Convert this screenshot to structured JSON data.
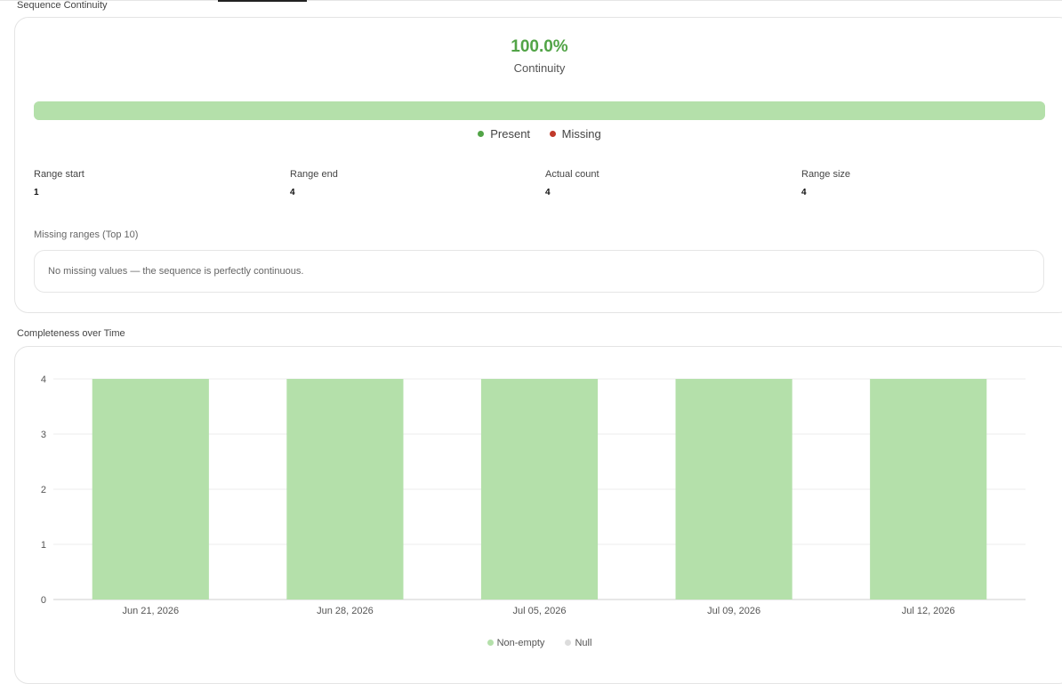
{
  "sections": {
    "continuity_title": "Sequence Continuity",
    "completeness_title": "Completeness over Time"
  },
  "continuity": {
    "percent": "100.0%",
    "label": "Continuity",
    "present_fraction": 1.0,
    "legend": [
      {
        "label": "Present",
        "color": "#52a447"
      },
      {
        "label": "Missing",
        "color": "#c0392b"
      }
    ],
    "stats": [
      {
        "label": "Range start",
        "value": "1"
      },
      {
        "label": "Range end",
        "value": "4"
      },
      {
        "label": "Actual count",
        "value": "4"
      },
      {
        "label": "Range size",
        "value": "4"
      }
    ],
    "missing_title": "Missing ranges (Top 10)",
    "missing_text": "No missing values — the sequence is perfectly continuous."
  },
  "colors": {
    "bar": "#b4e0aa",
    "accent": "#52a447",
    "null": "#dcdcdc"
  },
  "chart_data": {
    "type": "bar",
    "title": "Completeness over Time",
    "categories": [
      "Jun 21, 2026",
      "Jun 28, 2026",
      "Jul 05, 2026",
      "Jul 09, 2026",
      "Jul 12, 2026"
    ],
    "series": [
      {
        "name": "Non-empty",
        "values": [
          4,
          4,
          4,
          4,
          4
        ],
        "color": "#b4e0aa"
      },
      {
        "name": "Null",
        "values": [
          0,
          0,
          0,
          0,
          0
        ],
        "color": "#dcdcdc"
      }
    ],
    "yticks": [
      "0",
      "1",
      "2",
      "3",
      "4"
    ],
    "ylim": [
      0,
      4
    ],
    "grid": true,
    "legend_position": "bottom-center"
  }
}
